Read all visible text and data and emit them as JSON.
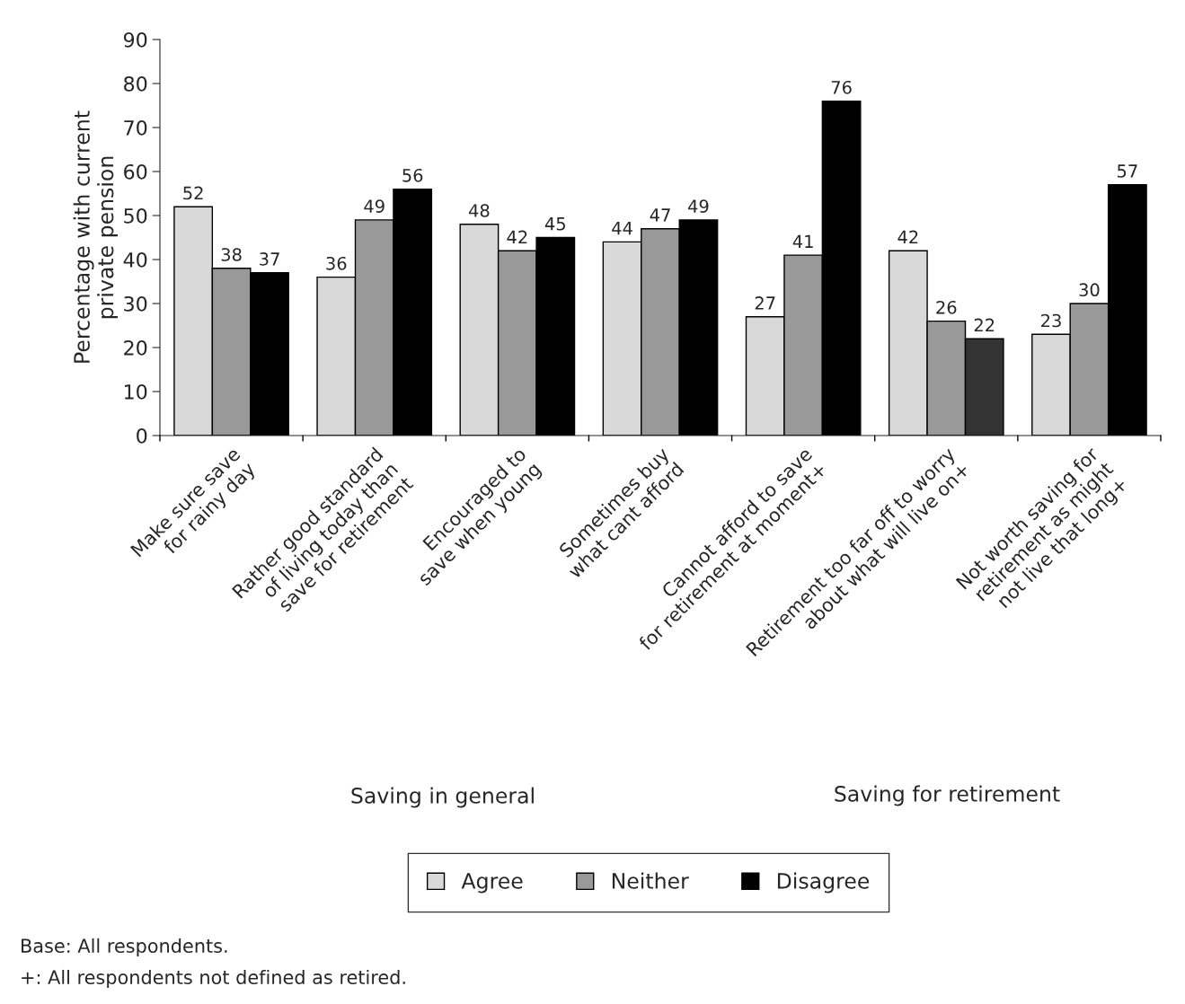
{
  "chart_data": {
    "type": "bar",
    "ylabel": "Percentage with current\nprivate pension",
    "categories": [
      "Make sure save\nfor rainy day",
      "Rather good standard\nof living today than\nsave for retirement",
      "Encouraged to\nsave when young",
      "Sometimes buy\nwhat cant afford",
      "Cannot afford to save\nfor retirement at moment+",
      "Retirement too far off to worry\nabout what will live on+",
      "Not worth saving for\nretirement as might\nnot live that long+"
    ],
    "series": [
      {
        "name": "Agree",
        "color": "#d9d9d9",
        "values": [
          52,
          36,
          48,
          44,
          27,
          42,
          23
        ]
      },
      {
        "name": "Neither",
        "color": "#999999",
        "values": [
          38,
          49,
          42,
          47,
          41,
          26,
          30
        ]
      },
      {
        "name": "Disagree",
        "color": "#000000",
        "colors": [
          "#000000",
          "#000000",
          "#000000",
          "#000000",
          "#000000",
          "#333333",
          "#000000"
        ],
        "values": [
          37,
          56,
          45,
          49,
          76,
          22,
          57
        ]
      }
    ],
    "ylim": [
      0,
      90
    ],
    "yticks": [
      0,
      10,
      20,
      30,
      40,
      50,
      60,
      70,
      80,
      90
    ],
    "grid": false,
    "legend": "bottom",
    "data_labels": true,
    "annotations": [
      "Saving in general",
      "Saving for retirement",
      "Base: All respondents.",
      "+: All respondents not defined as retired."
    ]
  }
}
